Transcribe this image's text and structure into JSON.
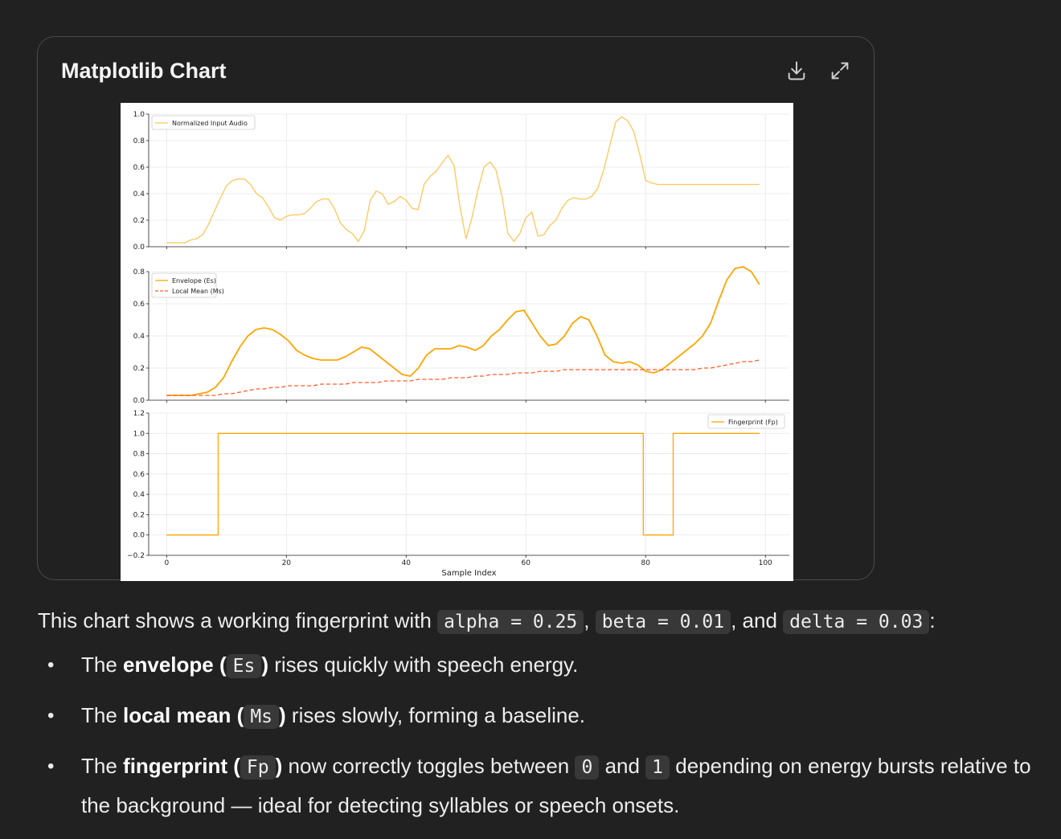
{
  "card": {
    "title": "Matplotlib Chart",
    "download_icon": "download-icon",
    "expand_icon": "expand-icon"
  },
  "chart_data": [
    {
      "type": "line",
      "legend": "Normalized Input Audio",
      "legend_position": "upper-left",
      "ylim": [
        0,
        1.0
      ],
      "yticks": [
        "0.0",
        "0.2",
        "0.4",
        "0.6",
        "0.8",
        "1.0"
      ],
      "grid": true,
      "series": [
        {
          "name": "Normalized Input Audio",
          "color": "#ffc65a",
          "x": [
            0,
            1,
            2,
            3,
            4,
            5,
            6,
            7,
            8,
            9,
            10,
            11,
            12,
            13,
            14,
            15,
            16,
            17,
            18,
            19,
            20,
            21,
            22,
            23,
            24,
            25,
            26,
            27,
            28,
            29,
            30,
            31,
            32,
            33,
            34,
            35,
            36,
            37,
            38,
            39,
            40,
            41,
            42,
            43,
            44,
            45,
            46,
            47,
            48,
            49,
            50,
            51,
            52,
            53,
            54,
            55,
            56,
            57,
            58,
            59,
            60,
            61,
            62,
            63,
            64,
            65,
            66,
            67,
            68,
            69,
            70,
            71,
            72,
            73,
            74,
            75,
            76,
            77,
            78,
            79,
            80,
            81,
            82,
            83,
            84,
            85,
            86,
            87,
            88,
            89,
            90,
            91,
            92,
            93,
            94,
            95,
            96,
            97,
            98,
            99
          ],
          "y": [
            0.03,
            0.03,
            0.03,
            0.03,
            0.05,
            0.06,
            0.09,
            0.17,
            0.27,
            0.37,
            0.46,
            0.5,
            0.51,
            0.51,
            0.47,
            0.4,
            0.37,
            0.3,
            0.22,
            0.2,
            0.23,
            0.24,
            0.24,
            0.25,
            0.29,
            0.34,
            0.36,
            0.36,
            0.29,
            0.18,
            0.13,
            0.1,
            0.04,
            0.12,
            0.35,
            0.42,
            0.4,
            0.32,
            0.34,
            0.38,
            0.35,
            0.29,
            0.28,
            0.47,
            0.53,
            0.57,
            0.63,
            0.69,
            0.61,
            0.3,
            0.06,
            0.22,
            0.43,
            0.6,
            0.64,
            0.58,
            0.38,
            0.1,
            0.04,
            0.1,
            0.22,
            0.26,
            0.08,
            0.09,
            0.16,
            0.2,
            0.29,
            0.35,
            0.37,
            0.36,
            0.36,
            0.38,
            0.44,
            0.58,
            0.76,
            0.94,
            0.98,
            0.95,
            0.87,
            0.7,
            0.5,
            0.48,
            0.47,
            0.47,
            0.47,
            0.47,
            0.47,
            0.47,
            0.47,
            0.47,
            0.47,
            0.47,
            0.47,
            0.47,
            0.47,
            0.47,
            0.47,
            0.47,
            0.47,
            0.47
          ]
        }
      ]
    },
    {
      "type": "line",
      "legend_position": "upper-left",
      "ylim": [
        0,
        0.8
      ],
      "yticks": [
        "0.0",
        "0.2",
        "0.4",
        "0.6",
        "0.8"
      ],
      "grid": true,
      "series": [
        {
          "name": "Envelope (Es)",
          "color": "#ffa500",
          "style": "solid",
          "y": [
            0.03,
            0.03,
            0.03,
            0.03,
            0.04,
            0.05,
            0.08,
            0.14,
            0.24,
            0.33,
            0.4,
            0.44,
            0.45,
            0.44,
            0.41,
            0.37,
            0.31,
            0.28,
            0.26,
            0.25,
            0.25,
            0.25,
            0.27,
            0.3,
            0.33,
            0.32,
            0.28,
            0.24,
            0.2,
            0.16,
            0.15,
            0.2,
            0.28,
            0.32,
            0.32,
            0.32,
            0.34,
            0.33,
            0.31,
            0.34,
            0.4,
            0.44,
            0.5,
            0.55,
            0.56,
            0.48,
            0.4,
            0.34,
            0.35,
            0.4,
            0.48,
            0.52,
            0.5,
            0.4,
            0.28,
            0.24,
            0.23,
            0.24,
            0.22,
            0.18,
            0.17,
            0.19,
            0.23,
            0.27,
            0.31,
            0.35,
            0.4,
            0.48,
            0.62,
            0.75,
            0.82,
            0.83,
            0.8,
            0.72
          ]
        },
        {
          "name": "Local Mean (Ms)",
          "color": "#ff5b2b",
          "style": "dashed",
          "y": [
            0.03,
            0.03,
            0.03,
            0.03,
            0.03,
            0.03,
            0.03,
            0.04,
            0.04,
            0.05,
            0.06,
            0.07,
            0.07,
            0.08,
            0.08,
            0.09,
            0.09,
            0.09,
            0.09,
            0.1,
            0.1,
            0.1,
            0.1,
            0.11,
            0.11,
            0.11,
            0.11,
            0.12,
            0.12,
            0.12,
            0.12,
            0.13,
            0.13,
            0.13,
            0.13,
            0.14,
            0.14,
            0.14,
            0.15,
            0.15,
            0.16,
            0.16,
            0.16,
            0.17,
            0.17,
            0.17,
            0.18,
            0.18,
            0.18,
            0.19,
            0.19,
            0.19,
            0.19,
            0.19,
            0.19,
            0.19,
            0.19,
            0.19,
            0.19,
            0.19,
            0.19,
            0.19,
            0.19,
            0.19,
            0.19,
            0.19,
            0.2,
            0.2,
            0.21,
            0.22,
            0.23,
            0.24,
            0.24,
            0.25
          ]
        }
      ]
    },
    {
      "type": "line",
      "legend_position": "upper-right",
      "xlabel": "Sample Index",
      "ylim": [
        -0.2,
        1.2
      ],
      "yticks": [
        "−0.2",
        "0.0",
        "0.2",
        "0.4",
        "0.6",
        "0.8",
        "1.0",
        "1.2"
      ],
      "xticks": [
        "0",
        "20",
        "40",
        "60",
        "80",
        "100"
      ],
      "xlim": [
        -3,
        104
      ],
      "grid": true,
      "series": [
        {
          "name": "Fingerprint (Fp)",
          "color": "#ffa500",
          "style": "step",
          "x": [
            0,
            8.6,
            8.6,
            79.6,
            79.6,
            84.6,
            84.6,
            99
          ],
          "y": [
            0,
            0,
            1,
            1,
            0,
            0,
            1,
            1
          ]
        }
      ]
    }
  ],
  "prose": {
    "intro_prefix": "This chart shows a working fingerprint with",
    "code_alpha": "alpha = 0.25",
    "sep1": ",",
    "code_beta": "beta = 0.01",
    "sep2": ", and",
    "code_delta": "delta = 0.03",
    "intro_suffix": ":",
    "bullets": [
      {
        "pre": "The ",
        "bold": "envelope (",
        "code": "Es",
        "bold2": ")",
        "post": " rises quickly with speech energy."
      },
      {
        "pre": "The ",
        "bold": "local mean (",
        "code": "Ms",
        "bold2": ")",
        "post": " rises slowly, forming a baseline."
      },
      {
        "pre": "The ",
        "bold": "fingerprint (",
        "code": "Fp",
        "bold2": ")",
        "post": " now correctly toggles between ",
        "code_a": "0",
        "mid": " and ",
        "code_b": "1",
        "post2": " depending on energy bursts relative to the background — ideal for detecting syllables or speech onsets."
      }
    ]
  }
}
